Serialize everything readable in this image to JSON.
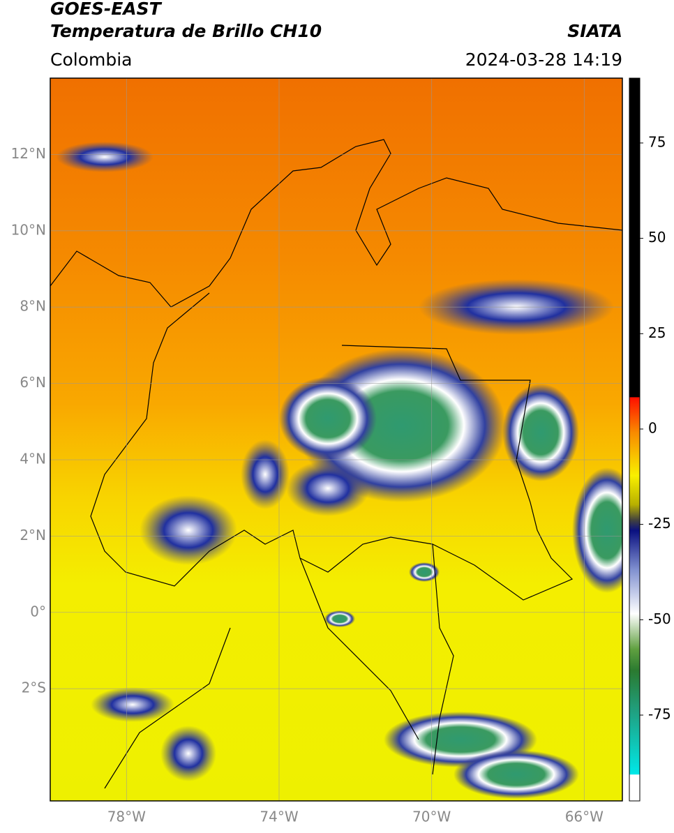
{
  "header": {
    "title_line1": "GOES-EAST",
    "title_line2": "Temperatura de Brillo CH10",
    "source": "SIATA",
    "region": "Colombia",
    "datetime": "2024-03-28 14:19"
  },
  "map": {
    "lat_range": [
      -4.94,
      14
    ],
    "lon_range": [
      -80,
      -65
    ],
    "lat_ticks": [
      {
        "value": 12,
        "label": "12°N"
      },
      {
        "value": 10,
        "label": "10°N"
      },
      {
        "value": 8,
        "label": "8°N"
      },
      {
        "value": 6,
        "label": "6°N"
      },
      {
        "value": 4,
        "label": "4°N"
      },
      {
        "value": 2,
        "label": "2°N"
      },
      {
        "value": 0,
        "label": "0°"
      },
      {
        "value": -2,
        "label": "2°S"
      }
    ],
    "lon_ticks": [
      {
        "value": -78,
        "label": "78°W"
      },
      {
        "value": -74,
        "label": "74°W"
      },
      {
        "value": -70,
        "label": "70°W"
      },
      {
        "value": -66,
        "label": "66°W"
      }
    ]
  },
  "colorbar": {
    "range": [
      -97.5,
      92
    ],
    "ticks": [
      75,
      50,
      25,
      0,
      -25,
      -50,
      -75
    ]
  }
}
